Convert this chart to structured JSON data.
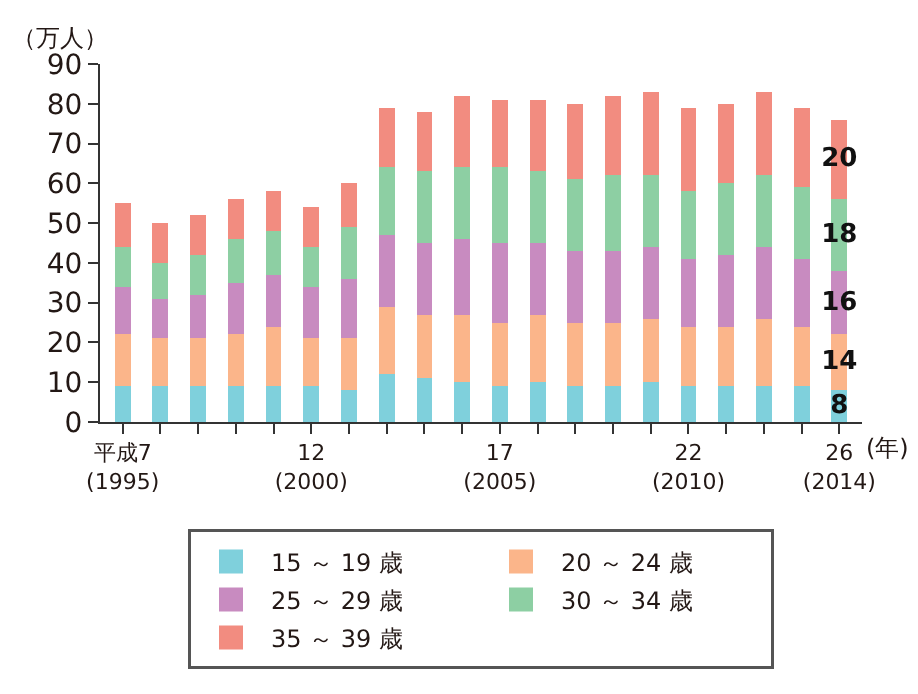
{
  "chart_data": {
    "type": "bar",
    "stacked": true,
    "ylabel": "（万人）",
    "xlabel": "(年)",
    "categories": [
      "平成7\n(1995)",
      null,
      null,
      null,
      null,
      "12\n(2000)",
      null,
      null,
      null,
      null,
      "17\n(2005)",
      null,
      null,
      null,
      null,
      "22\n(2010)",
      null,
      null,
      null,
      "26\n(2014)"
    ],
    "ylim": [
      0,
      90
    ],
    "yticks": [
      0,
      10,
      20,
      30,
      40,
      50,
      60,
      70,
      80,
      90
    ],
    "grid": false,
    "legend": "bottom",
    "series": [
      {
        "name": "15 ～ 19 歳",
        "color": "#7fd0dc",
        "values": [
          9,
          9,
          9,
          9,
          9,
          9,
          8,
          12,
          11,
          10,
          9,
          10,
          9,
          9,
          10,
          9,
          9,
          9,
          9,
          8
        ],
        "value_labels": [
          null,
          null,
          null,
          null,
          null,
          null,
          null,
          null,
          null,
          null,
          null,
          null,
          null,
          null,
          null,
          null,
          null,
          null,
          null,
          "8"
        ]
      },
      {
        "name": "20 ～ 24 歳",
        "color": "#fbb58a",
        "values": [
          13,
          12,
          12,
          13,
          15,
          12,
          13,
          17,
          16,
          17,
          16,
          17,
          16,
          16,
          16,
          15,
          15,
          17,
          15,
          14
        ],
        "value_labels": [
          null,
          null,
          null,
          null,
          null,
          null,
          null,
          null,
          null,
          null,
          null,
          null,
          null,
          null,
          null,
          null,
          null,
          null,
          null,
          "14"
        ]
      },
      {
        "name": "25 ～ 29 歳",
        "color": "#c88bc0",
        "values": [
          12,
          10,
          11,
          13,
          13,
          13,
          15,
          18,
          18,
          19,
          20,
          18,
          18,
          18,
          18,
          17,
          18,
          18,
          17,
          16
        ],
        "value_labels": [
          null,
          null,
          null,
          null,
          null,
          null,
          null,
          null,
          null,
          null,
          null,
          null,
          null,
          null,
          null,
          null,
          null,
          null,
          null,
          "16"
        ]
      },
      {
        "name": "30 ～ 34 歳",
        "color": "#8dcfa3",
        "values": [
          10,
          9,
          10,
          11,
          11,
          10,
          13,
          17,
          18,
          18,
          19,
          18,
          18,
          19,
          18,
          17,
          18,
          18,
          18,
          18
        ],
        "value_labels": [
          null,
          null,
          null,
          null,
          null,
          null,
          null,
          null,
          null,
          null,
          null,
          null,
          null,
          null,
          null,
          null,
          null,
          null,
          null,
          "18"
        ]
      },
      {
        "name": "35 ～ 39 歳",
        "color": "#f28c80",
        "values": [
          11,
          10,
          10,
          10,
          10,
          10,
          11,
          15,
          15,
          18,
          17,
          18,
          19,
          20,
          21,
          21,
          20,
          21,
          20,
          20
        ],
        "value_labels": [
          null,
          null,
          null,
          null,
          null,
          null,
          null,
          null,
          null,
          null,
          null,
          null,
          null,
          null,
          null,
          null,
          null,
          null,
          null,
          "20"
        ]
      }
    ]
  }
}
